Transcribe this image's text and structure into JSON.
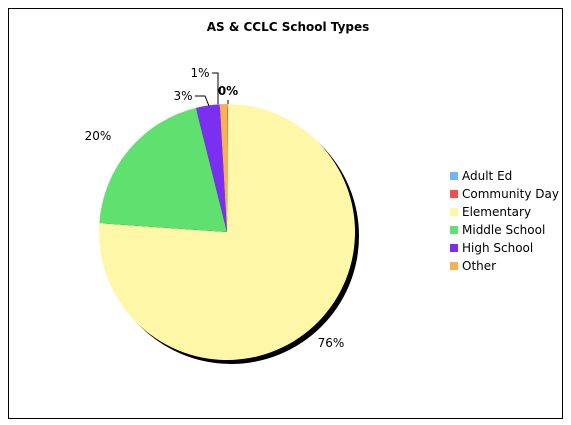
{
  "chart_data": {
    "type": "pie",
    "title": "AS & CCLC School Types",
    "legend_position": "right",
    "slices": [
      {
        "label": "Adult Ed",
        "value": 0.0,
        "display": "",
        "color": "#6fb5f7"
      },
      {
        "label": "Community Day",
        "value": 0.1,
        "display": "0%",
        "color": "#f0504a"
      },
      {
        "label": "Elementary",
        "value": 76.0,
        "display": "76%",
        "color": "#fff7a8"
      },
      {
        "label": "Middle School",
        "value": 20.0,
        "display": "20%",
        "color": "#5fe06f"
      },
      {
        "label": "High School",
        "value": 3.0,
        "display": "3%",
        "color": "#7b2ff0"
      },
      {
        "label": "Other",
        "value": 0.9,
        "display": "1%",
        "color": "#f8b14e"
      }
    ]
  }
}
